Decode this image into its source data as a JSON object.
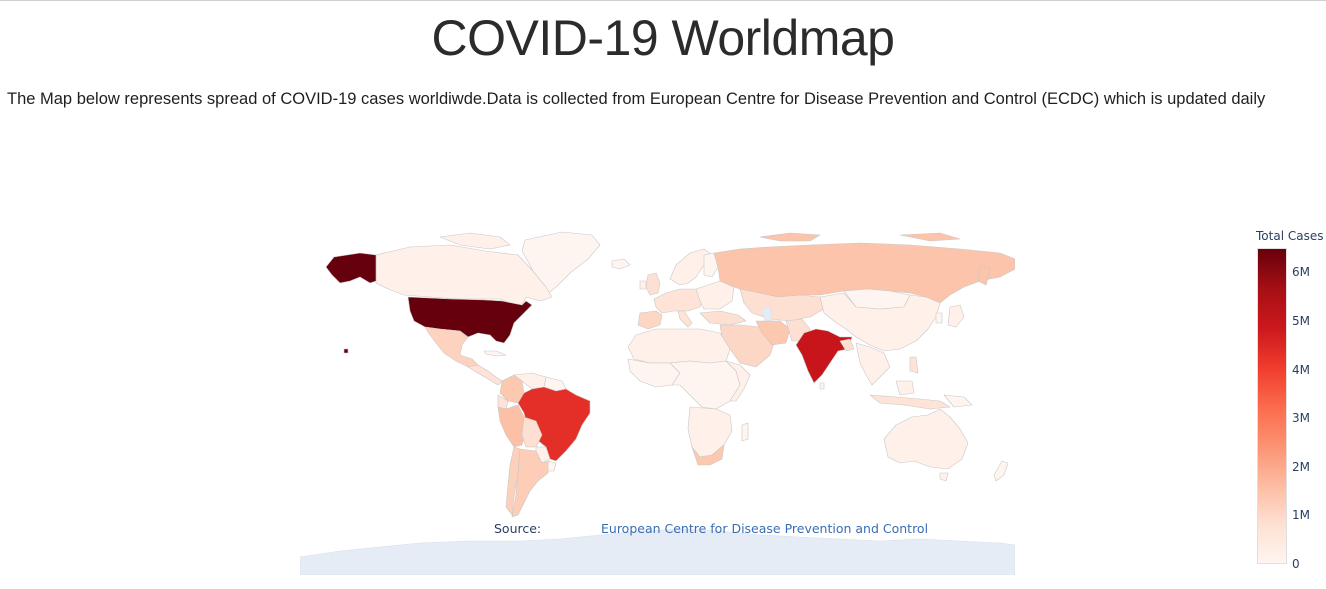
{
  "header": {
    "title": "COVID-19 Worldmap"
  },
  "intro_text": "The Map below represents spread of COVID-19 cases worldiwde.Data is collected from European Centre for Disease Prevention and Control (ECDC) which is updated daily",
  "map": {
    "projection": "equirectangular",
    "colorscale_name": "Reds",
    "colorscale": [
      "#fff5f0",
      "#fee0d2",
      "#fcbba1",
      "#fc9272",
      "#fb6a4a",
      "#ef3b2c",
      "#cb181d",
      "#a50f15",
      "#67000d"
    ],
    "ocean_color": "#ffffff",
    "land_default_color": "#fff5f0",
    "antarctica_color": "#e6ecf5",
    "border_color": "#c8c8c8",
    "highlighted_countries": [
      {
        "name": "United States",
        "fraction_of_max": 1.0
      },
      {
        "name": "Brazil",
        "fraction_of_max": 0.62
      },
      {
        "name": "India",
        "fraction_of_max": 0.78
      },
      {
        "name": "Russia",
        "fraction_of_max": 0.16
      },
      {
        "name": "Peru",
        "fraction_of_max": 0.1
      },
      {
        "name": "Mexico",
        "fraction_of_max": 0.09
      },
      {
        "name": "Colombia",
        "fraction_of_max": 0.09
      },
      {
        "name": "South Africa",
        "fraction_of_max": 0.09
      },
      {
        "name": "Argentina",
        "fraction_of_max": 0.07
      }
    ]
  },
  "source": {
    "label": "Source:",
    "link_text": "European Centre for Disease Prevention and Control"
  },
  "colorbar": {
    "title": "Total Cases",
    "ticks": [
      "6M",
      "5M",
      "4M",
      "3M",
      "2M",
      "1M",
      "0"
    ],
    "tick_values": [
      6,
      5,
      4,
      3,
      2,
      1,
      0
    ],
    "max_value": 6.5
  }
}
